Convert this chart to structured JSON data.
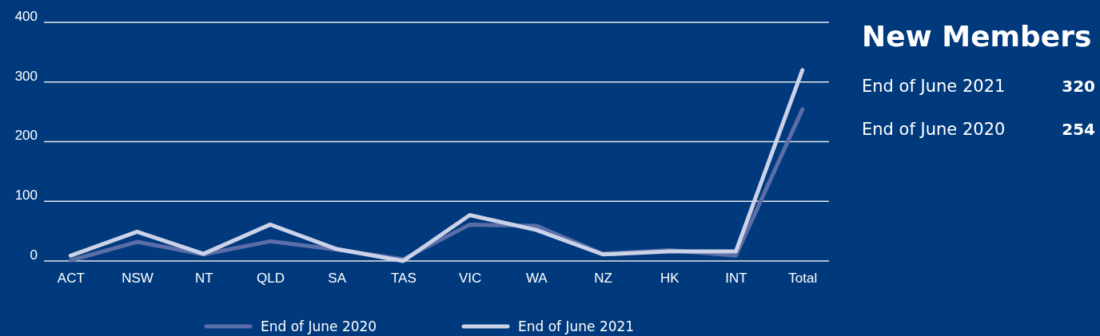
{
  "chart_data": {
    "type": "line",
    "title": "New Members",
    "categories": [
      "ACT",
      "NSW",
      "NT",
      "QLD",
      "SA",
      "TAS",
      "VIC",
      "WA",
      "NZ",
      "HK",
      "INT",
      "Total"
    ],
    "series": [
      {
        "name": "End of June 2020",
        "color": "#5b6ea8",
        "values": [
          1,
          32,
          11,
          33,
          19,
          3,
          61,
          59,
          12,
          18,
          9,
          254
        ]
      },
      {
        "name": "End of June 2021",
        "color": "#ccd2e8",
        "values": [
          9,
          49,
          12,
          61,
          20,
          0,
          77,
          52,
          11,
          16,
          16,
          320
        ]
      }
    ],
    "ylim": [
      0,
      400
    ],
    "yticks": [
      0,
      100,
      200,
      300,
      400
    ],
    "grid": "y",
    "legend": "bottom",
    "marker": "none",
    "line_style": "solid",
    "annotations": [
      "End of June 2021",
      "320",
      "End of June 2020",
      "254"
    ]
  }
}
